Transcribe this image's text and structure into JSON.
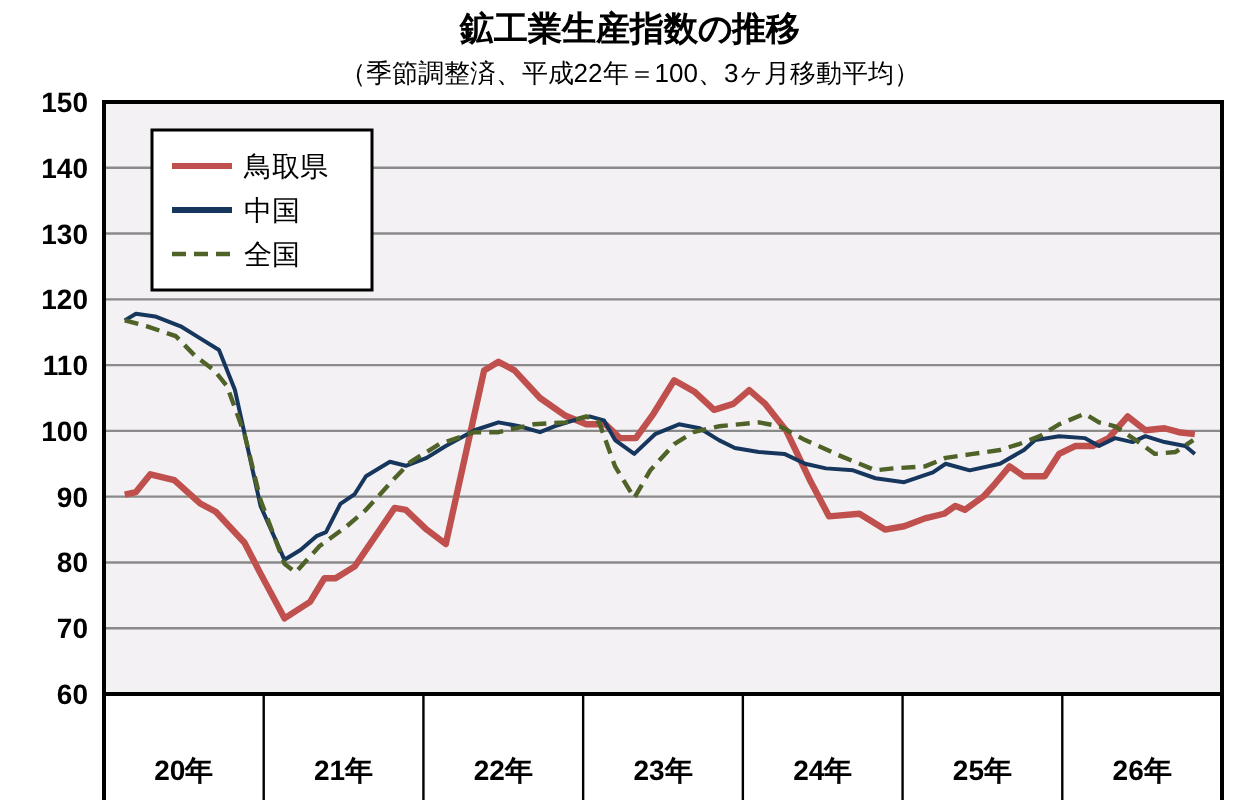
{
  "chart_data": {
    "type": "line",
    "title": "鉱工業生産指数の推移",
    "subtitle": "（季節調整済、平成22年＝100、3ヶ月移動平均）",
    "xlim": [
      19.5,
      26.5
    ],
    "xticks": [
      {
        "value": 20,
        "label": "20年"
      },
      {
        "value": 21,
        "label": "21年"
      },
      {
        "value": 22,
        "label": "22年"
      },
      {
        "value": 23,
        "label": "23年"
      },
      {
        "value": 24,
        "label": "24年"
      },
      {
        "value": 25,
        "label": "25年"
      },
      {
        "value": 26,
        "label": "26年"
      }
    ],
    "ylim": [
      60,
      150
    ],
    "yticks": [
      60,
      70,
      80,
      90,
      100,
      110,
      120,
      130,
      140,
      150
    ],
    "grid": "y",
    "legend": "top left",
    "marker": "none",
    "series": [
      {
        "name": "鳥取県",
        "color": "#c0504d",
        "line_style": "solid",
        "x": [
          19.63,
          19.7,
          19.79,
          19.94,
          20.1,
          20.2,
          20.38,
          20.48,
          20.63,
          20.79,
          20.88,
          20.95,
          21.07,
          21.32,
          21.39,
          21.52,
          21.64,
          21.88,
          21.97,
          22.07,
          22.23,
          22.39,
          22.52,
          22.64,
          22.73,
          22.83,
          22.94,
          23.07,
          23.2,
          23.32,
          23.44,
          23.54,
          23.64,
          23.77,
          23.92,
          24.04,
          24.23,
          24.39,
          24.51,
          24.64,
          24.76,
          24.83,
          24.89,
          25.01,
          25.08,
          25.17,
          25.26,
          25.39,
          25.48,
          25.58,
          25.69,
          25.79,
          25.91,
          26.02,
          26.14,
          26.23,
          26.33
        ],
        "values": [
          90.3,
          90.7,
          93.4,
          92.5,
          89,
          87.7,
          83,
          78.3,
          71.5,
          74,
          77.6,
          77.6,
          79.4,
          88.3,
          88,
          85,
          82.8,
          109.2,
          110.5,
          109.2,
          105,
          102.3,
          101,
          101,
          98.9,
          98.9,
          102.6,
          107.7,
          105.9,
          103.2,
          104.1,
          106.2,
          104.1,
          100.1,
          92.5,
          87,
          87.4,
          85,
          85.5,
          86.7,
          87.4,
          88.6,
          88,
          90.1,
          92,
          94.6,
          93.1,
          93.1,
          96.5,
          97.7,
          97.7,
          98.9,
          102.2,
          100.1,
          100.4,
          99.8,
          99.5
        ]
      },
      {
        "name": "中国",
        "color": "#17365d",
        "line_style": "solid",
        "x": [
          19.63,
          19.7,
          19.82,
          19.98,
          20.1,
          20.22,
          20.32,
          20.48,
          20.63,
          20.73,
          20.83,
          20.89,
          20.98,
          21.07,
          21.14,
          21.29,
          21.39,
          21.52,
          21.64,
          21.82,
          21.97,
          22.1,
          22.23,
          22.32,
          22.48,
          22.54,
          22.63,
          22.7,
          22.82,
          22.95,
          23.1,
          23.23,
          23.35,
          23.45,
          23.6,
          23.76,
          23.89,
          24.02,
          24.19,
          24.33,
          24.51,
          24.69,
          24.77,
          24.92,
          25.11,
          25.26,
          25.33,
          25.48,
          25.64,
          25.73,
          25.83,
          25.94,
          26.02,
          26.14,
          26.27,
          26.33
        ],
        "values": [
          116.8,
          117.8,
          117.4,
          115.9,
          114.1,
          112.3,
          106.2,
          88.6,
          80.4,
          81.9,
          84,
          84.6,
          88.9,
          90.4,
          93.1,
          95.3,
          94.7,
          95.9,
          97.7,
          100.1,
          101.3,
          100.7,
          99.8,
          100.7,
          101.9,
          102.2,
          101.6,
          98.6,
          96.5,
          99.5,
          101,
          100.4,
          98.6,
          97.4,
          96.8,
          96.5,
          95,
          94.3,
          94,
          92.8,
          92.2,
          93.7,
          95,
          94,
          95,
          97.1,
          98.6,
          99.2,
          98.9,
          97.7,
          98.9,
          98.3,
          99.2,
          98.3,
          97.7,
          96.5
        ]
      },
      {
        "name": "全国",
        "color": "#4f6228",
        "line_style": "dashed",
        "x": [
          19.63,
          19.77,
          19.95,
          20.07,
          20.19,
          20.27,
          20.38,
          20.48,
          20.63,
          20.7,
          20.85,
          21.02,
          21.14,
          21.32,
          21.42,
          21.6,
          21.82,
          21.97,
          22.19,
          22.39,
          22.52,
          22.6,
          22.7,
          22.82,
          22.92,
          23.07,
          23.19,
          23.35,
          23.6,
          23.73,
          23.89,
          24.11,
          24.33,
          24.44,
          24.64,
          24.77,
          24.94,
          25.11,
          25.23,
          25.36,
          25.48,
          25.64,
          25.73,
          25.83,
          25.96,
          26.08,
          26.21,
          26.32
        ],
        "values": [
          116.8,
          115.9,
          114.4,
          111.4,
          109.2,
          106.8,
          99.5,
          89.5,
          79.8,
          78.5,
          82.5,
          85.5,
          88,
          92.8,
          95.3,
          98,
          99.8,
          99.8,
          101,
          101.3,
          102.2,
          101.3,
          94.6,
          89.8,
          94,
          98,
          99.8,
          100.7,
          101.3,
          100.7,
          98.6,
          96.2,
          94,
          94.3,
          94.6,
          95.9,
          96.5,
          97.1,
          98,
          99.2,
          101,
          102.6,
          101.3,
          100.7,
          98.6,
          96.5,
          96.8,
          98.6
        ]
      }
    ]
  }
}
